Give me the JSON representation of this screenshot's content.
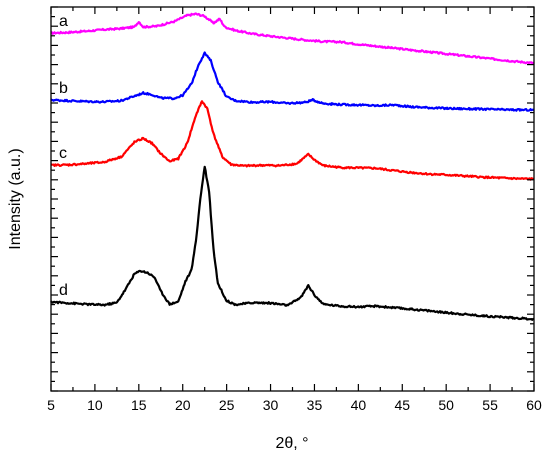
{
  "chart_data": {
    "type": "line",
    "xlabel": "2θ, °",
    "ylabel": "Intensity (a.u.)",
    "xlim": [
      5,
      60
    ],
    "ylim": [
      0,
      100
    ],
    "x_ticks": [
      5,
      10,
      15,
      20,
      25,
      30,
      35,
      40,
      45,
      50,
      55,
      60
    ],
    "y_tick_labels_shown": false,
    "grid": false,
    "legend": "none",
    "series": [
      {
        "name": "a",
        "color": "#ff00ff",
        "points": [
          [
            5,
            93.2
          ],
          [
            7,
            93.4
          ],
          [
            9,
            93.7
          ],
          [
            11,
            94.1
          ],
          [
            13,
            94.4
          ],
          [
            14.5,
            94.8
          ],
          [
            15,
            96.2
          ],
          [
            15.5,
            94.8
          ],
          [
            17,
            95.0
          ],
          [
            19,
            96.2
          ],
          [
            20.5,
            97.8
          ],
          [
            21.5,
            98.2
          ],
          [
            22.5,
            97.6
          ],
          [
            23.5,
            95.8
          ],
          [
            24.2,
            96.9
          ],
          [
            24.8,
            94.8
          ],
          [
            26,
            93.9
          ],
          [
            28,
            93.0
          ],
          [
            30,
            92.4
          ],
          [
            32,
            91.9
          ],
          [
            34,
            91.4
          ],
          [
            36,
            91.0
          ],
          [
            38,
            90.9
          ],
          [
            40,
            90.3
          ],
          [
            42,
            89.8
          ],
          [
            44,
            89.3
          ],
          [
            46,
            88.8
          ],
          [
            48,
            88.3
          ],
          [
            50,
            87.8
          ],
          [
            52,
            87.3
          ],
          [
            54,
            86.8
          ],
          [
            56,
            86.3
          ],
          [
            58,
            85.8
          ],
          [
            60,
            85.4
          ]
        ]
      },
      {
        "name": "b",
        "color": "#0000ff",
        "points": [
          [
            5,
            75.8
          ],
          [
            7,
            75.6
          ],
          [
            9,
            75.4
          ],
          [
            11,
            75.3
          ],
          [
            13,
            75.6
          ],
          [
            14.5,
            76.8
          ],
          [
            15.5,
            77.6
          ],
          [
            16.5,
            77.2
          ],
          [
            17.5,
            76.3
          ],
          [
            19,
            76.2
          ],
          [
            20,
            77.0
          ],
          [
            21,
            80.0
          ],
          [
            21.8,
            85.0
          ],
          [
            22.5,
            88.0
          ],
          [
            23.2,
            86.0
          ],
          [
            24,
            80.5
          ],
          [
            25,
            76.6
          ],
          [
            26,
            75.6
          ],
          [
            28,
            75.2
          ],
          [
            30,
            75.3
          ],
          [
            32,
            74.9
          ],
          [
            34,
            75.2
          ],
          [
            34.8,
            75.8
          ],
          [
            36,
            74.9
          ],
          [
            38,
            74.6
          ],
          [
            40,
            74.5
          ],
          [
            42,
            74.3
          ],
          [
            44,
            74.5
          ],
          [
            46,
            74.0
          ],
          [
            48,
            73.8
          ],
          [
            50,
            73.6
          ],
          [
            52,
            73.5
          ],
          [
            54,
            73.4
          ],
          [
            56,
            73.3
          ],
          [
            58,
            73.2
          ],
          [
            60,
            73.2
          ]
        ]
      },
      {
        "name": "c",
        "color": "#ff0000",
        "points": [
          [
            5,
            58.8
          ],
          [
            7,
            58.9
          ],
          [
            9,
            59.2
          ],
          [
            11,
            59.6
          ],
          [
            13,
            61.0
          ],
          [
            14.5,
            64.8
          ],
          [
            15.5,
            65.8
          ],
          [
            16.5,
            64.5
          ],
          [
            17.5,
            61.8
          ],
          [
            18.5,
            59.8
          ],
          [
            19.5,
            60.5
          ],
          [
            20.5,
            64.5
          ],
          [
            21.5,
            71.8
          ],
          [
            22.2,
            75.5
          ],
          [
            22.8,
            73.5
          ],
          [
            23.5,
            67.0
          ],
          [
            24.5,
            61.0
          ],
          [
            25.5,
            59.0
          ],
          [
            27,
            58.6
          ],
          [
            29,
            58.8
          ],
          [
            31,
            58.7
          ],
          [
            33,
            59.2
          ],
          [
            34.3,
            61.6
          ],
          [
            35,
            60.2
          ],
          [
            36,
            58.7
          ],
          [
            38,
            58.2
          ],
          [
            40,
            58.1
          ],
          [
            42,
            58.0
          ],
          [
            44,
            57.4
          ],
          [
            46,
            56.9
          ],
          [
            48,
            56.5
          ],
          [
            50,
            56.3
          ],
          [
            52,
            56.0
          ],
          [
            54,
            55.7
          ],
          [
            56,
            55.5
          ],
          [
            58,
            55.3
          ],
          [
            60,
            55.2
          ]
        ]
      },
      {
        "name": "d",
        "color": "#000000",
        "points": [
          [
            5,
            23.2
          ],
          [
            7,
            22.9
          ],
          [
            9,
            22.6
          ],
          [
            11,
            22.4
          ],
          [
            12.5,
            23.0
          ],
          [
            13.5,
            26.5
          ],
          [
            14.5,
            30.5
          ],
          [
            15.2,
            31.3
          ],
          [
            16,
            30.8
          ],
          [
            16.8,
            29.6
          ],
          [
            17.5,
            26.0
          ],
          [
            18.5,
            22.6
          ],
          [
            19.5,
            23.3
          ],
          [
            20.3,
            28.5
          ],
          [
            21,
            31.5
          ],
          [
            21.5,
            39.0
          ],
          [
            22,
            50.0
          ],
          [
            22.5,
            58.5
          ],
          [
            23,
            52.0
          ],
          [
            23.5,
            37.0
          ],
          [
            24,
            28.0
          ],
          [
            25,
            23.5
          ],
          [
            26,
            22.5
          ],
          [
            28,
            23.0
          ],
          [
            30,
            22.9
          ],
          [
            32,
            22.3
          ],
          [
            33.5,
            24.5
          ],
          [
            34.3,
            27.5
          ],
          [
            35,
            25.0
          ],
          [
            36,
            22.6
          ],
          [
            38,
            22.1
          ],
          [
            40,
            21.9
          ],
          [
            42,
            22.1
          ],
          [
            44,
            21.7
          ],
          [
            46,
            21.3
          ],
          [
            48,
            20.9
          ],
          [
            50,
            20.4
          ],
          [
            52,
            20.0
          ],
          [
            54,
            19.6
          ],
          [
            56,
            19.3
          ],
          [
            58,
            19.0
          ],
          [
            60,
            18.7
          ]
        ]
      }
    ]
  }
}
